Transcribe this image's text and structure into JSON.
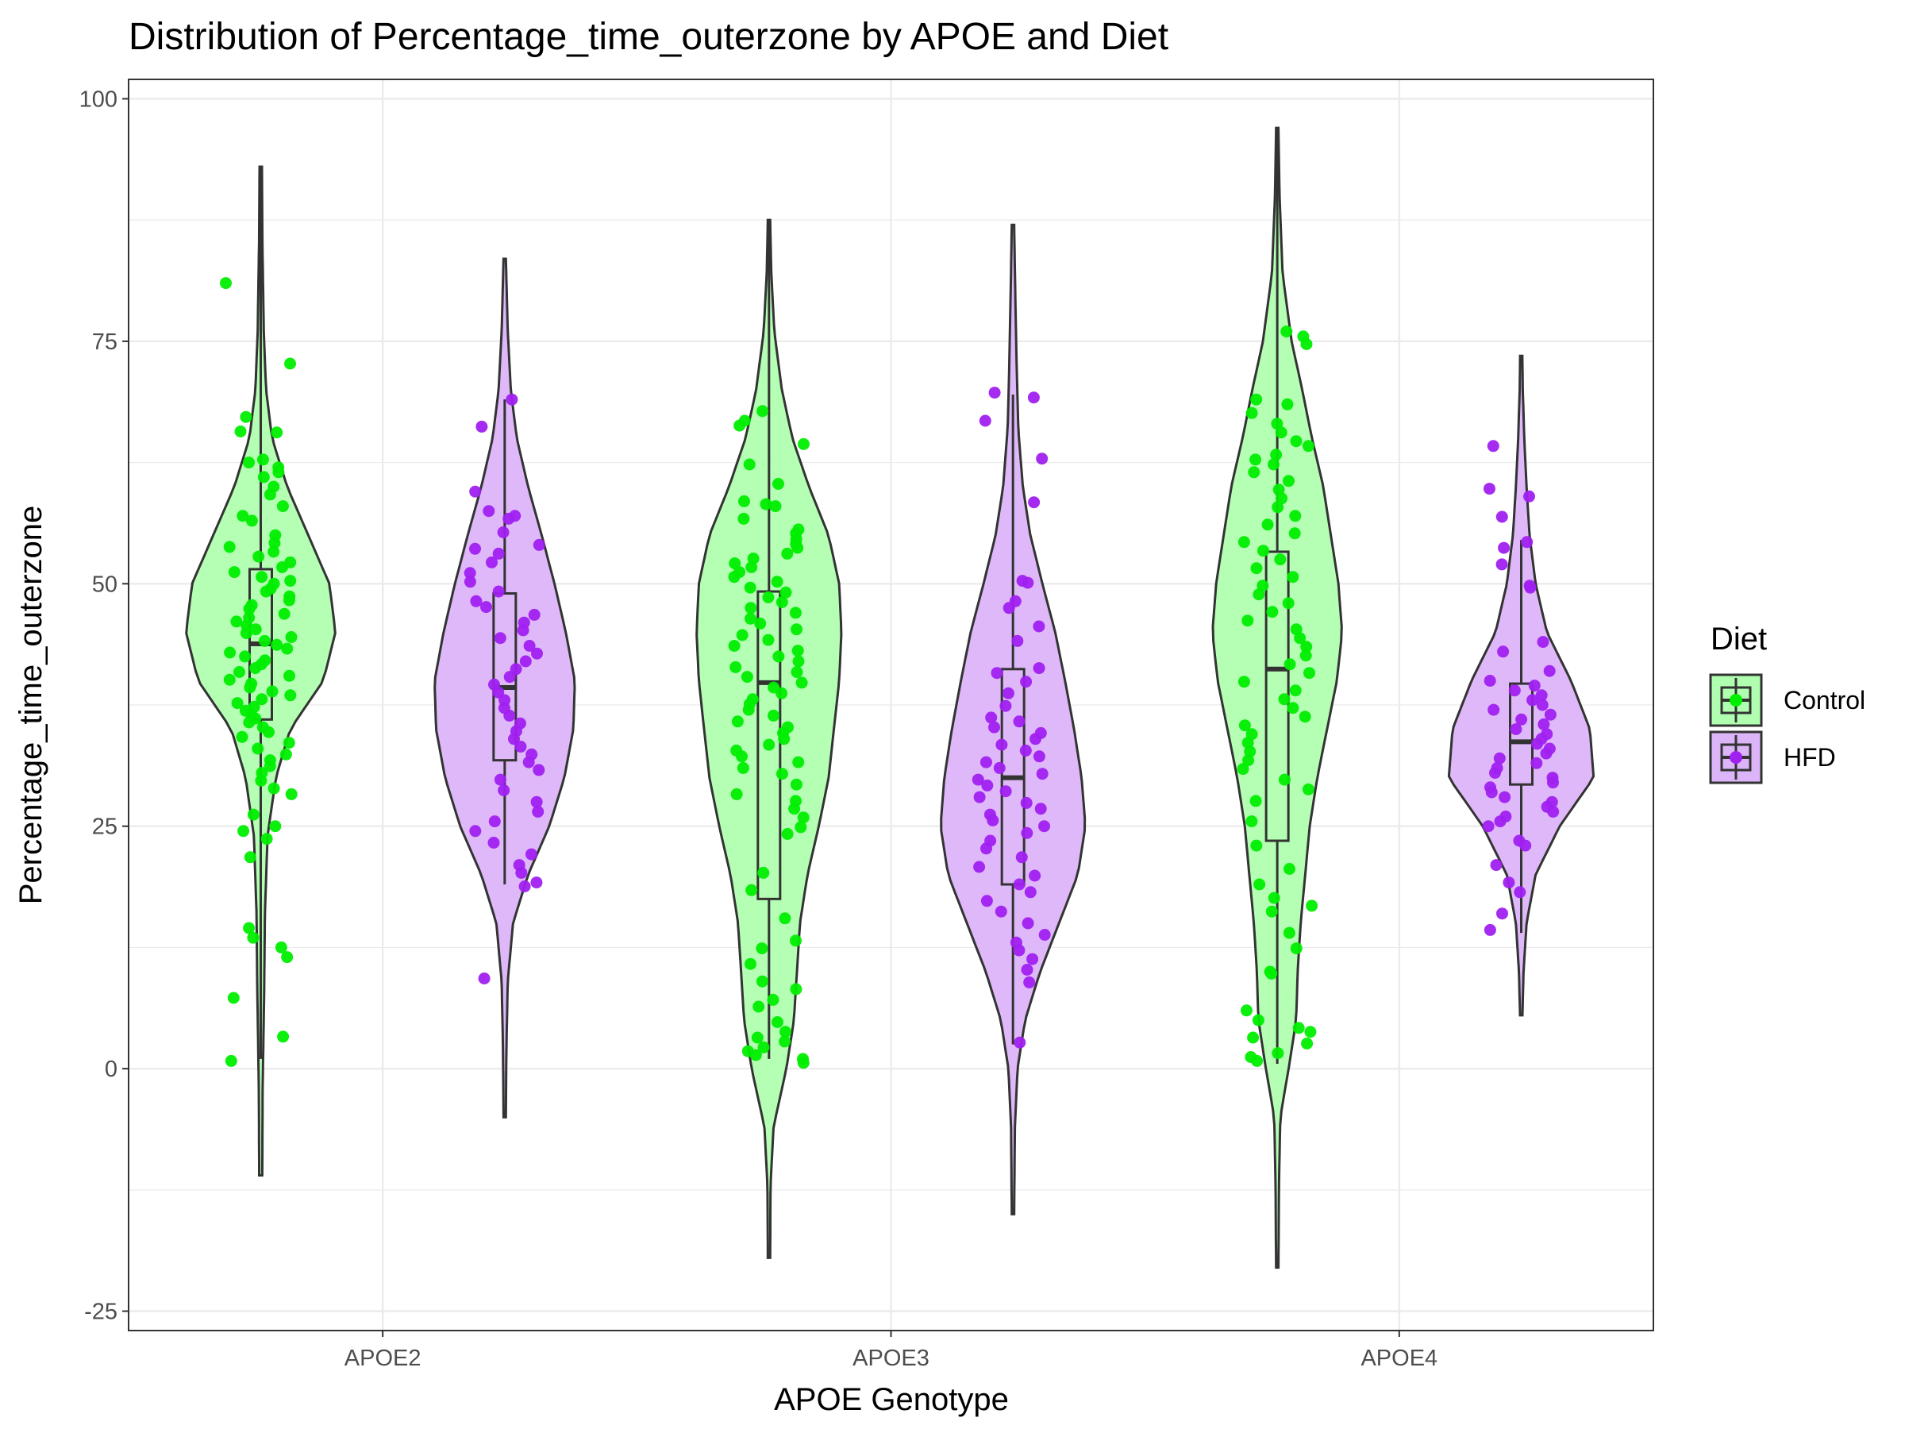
{
  "chart_data": {
    "type": "violin",
    "title": "Distribution of Percentage_time_outerzone by APOE and Diet",
    "xlabel": "APOE Genotype",
    "ylabel": "Percentage_time_outerzone",
    "categories": [
      "APOE2",
      "APOE3",
      "APOE4"
    ],
    "ylim": [
      -27,
      102
    ],
    "yticks": [
      -25,
      0,
      25,
      50,
      75,
      100
    ],
    "ytick_labels": [
      "-25",
      "0",
      "25",
      "50",
      "75",
      "100"
    ],
    "grid": true,
    "legend": {
      "title": "Diet",
      "position": "right",
      "entries": [
        "Control",
        "HFD"
      ]
    },
    "colors": {
      "Control": {
        "point": "#00ee00",
        "fill": "#b0ffb0"
      },
      "HFD": {
        "point": "#a020f0",
        "fill": "#dcb4f8"
      },
      "outline": "#333333",
      "grid": "#ebebeb",
      "panel_border": "#333333"
    },
    "series": [
      {
        "name": "Control",
        "groups": [
          {
            "category": "APOE2",
            "box": {
              "min": 1,
              "q1": 36,
              "median": 43.8,
              "q3": 51.5,
              "max": 93
            },
            "violin_range": [
              -11,
              93
            ],
            "violin_profile": [
              [
                -11,
                0.01
              ],
              [
                -2,
                0.015
              ],
              [
                8,
                0.035
              ],
              [
                16,
                0.045
              ],
              [
                24,
                0.08
              ],
              [
                30,
                0.19
              ],
              [
                35,
                0.38
              ],
              [
                40,
                0.82
              ],
              [
                45,
                0.98
              ],
              [
                50,
                0.9
              ],
              [
                55,
                0.62
              ],
              [
                60,
                0.34
              ],
              [
                65,
                0.14
              ],
              [
                70,
                0.06
              ],
              [
                76,
                0.03
              ],
              [
                85,
                0.012
              ],
              [
                93,
                0.005
              ]
            ],
            "points": [
              81,
              72.7,
              67.2,
              65.7,
              65.6,
              62.8,
              62.5,
              62,
              61.5,
              61,
              60,
              59.2,
              58,
              57,
              56.5,
              55,
              54.2,
              53.8,
              53.3,
              52.8,
              52.2,
              51.7,
              51.2,
              50.7,
              50.3,
              50,
              49.5,
              49.2,
              48.7,
              48.3,
              47.8,
              47.4,
              46.9,
              46.5,
              46.1,
              45.7,
              45.3,
              44.9,
              44.5,
              44.1,
              43.7,
              43.3,
              42.9,
              42.5,
              42.1,
              41.7,
              41.3,
              40.9,
              40.5,
              40.1,
              39.7,
              39.3,
              38.9,
              38.5,
              38.1,
              37.7,
              37.3,
              36.9,
              36.5,
              36.1,
              35.7,
              35.2,
              34.7,
              34.2,
              33.6,
              33,
              32.4,
              31.8,
              31.2,
              30.5,
              29.7,
              28.9,
              28.3,
              26.2,
              25,
              24.5,
              23.7,
              21.8,
              14.5,
              13.5,
              12.5,
              11.5,
              7.3,
              3.3,
              0.8
            ]
          },
          {
            "category": "APOE3",
            "box": {
              "min": 1,
              "q1": 17.5,
              "median": 39.8,
              "q3": 49.2,
              "max": 87.5
            },
            "violin_range": [
              -19.5,
              87.5
            ],
            "violin_profile": [
              [
                -19.5,
                0.005
              ],
              [
                -12,
                0.01
              ],
              [
                -6,
                0.05
              ],
              [
                0,
                0.22
              ],
              [
                5,
                0.32
              ],
              [
                10,
                0.36
              ],
              [
                15,
                0.4
              ],
              [
                20,
                0.5
              ],
              [
                25,
                0.65
              ],
              [
                30,
                0.78
              ],
              [
                35,
                0.85
              ],
              [
                40,
                0.92
              ],
              [
                45,
                0.95
              ],
              [
                50,
                0.92
              ],
              [
                55,
                0.78
              ],
              [
                60,
                0.52
              ],
              [
                65,
                0.3
              ],
              [
                70,
                0.16
              ],
              [
                76,
                0.06
              ],
              [
                82,
                0.02
              ],
              [
                87.5,
                0.005
              ]
            ],
            "points": [
              67.8,
              66.8,
              66.3,
              64.4,
              62.3,
              60.3,
              58.5,
              58.2,
              58,
              56.7,
              55.6,
              55.2,
              54.6,
              54.1,
              53.7,
              53.1,
              52.6,
              52.1,
              51.7,
              51.2,
              50.7,
              50.2,
              49.6,
              49.1,
              48.6,
              48.1,
              47.5,
              47,
              46.4,
              45.9,
              45.3,
              44.7,
              44.2,
              43.6,
              43.1,
              42.5,
              42,
              41.4,
              40.9,
              40.4,
              39.8,
              39.3,
              38.7,
              38.1,
              37.6,
              37,
              36.4,
              35.8,
              35.2,
              34.6,
              34,
              33.4,
              32.8,
              32.2,
              31.6,
              31,
              30.4,
              29.3,
              28.3,
              27.6,
              26.8,
              25.9,
              24.9,
              24.2,
              20.2,
              18.4,
              15.5,
              13.2,
              12.4,
              10.8,
              9,
              8.2,
              7.1,
              6.4,
              4.8,
              3.8,
              3.2,
              2.8,
              2.2,
              1.8,
              1.4,
              1,
              0.6
            ]
          },
          {
            "category": "APOE4",
            "box": {
              "min": 0.5,
              "q1": 23.5,
              "median": 41.2,
              "q3": 53.3,
              "max": 97
            },
            "violin_range": [
              -20.5,
              97
            ],
            "violin_profile": [
              [
                -20.5,
                0.005
              ],
              [
                -12,
                0.012
              ],
              [
                -5,
                0.03
              ],
              [
                0,
                0.14
              ],
              [
                5,
                0.24
              ],
              [
                10,
                0.26
              ],
              [
                15,
                0.3
              ],
              [
                20,
                0.36
              ],
              [
                25,
                0.42
              ],
              [
                30,
                0.52
              ],
              [
                35,
                0.65
              ],
              [
                40,
                0.78
              ],
              [
                45,
                0.85
              ],
              [
                50,
                0.8
              ],
              [
                55,
                0.7
              ],
              [
                60,
                0.6
              ],
              [
                65,
                0.45
              ],
              [
                70,
                0.32
              ],
              [
                75,
                0.18
              ],
              [
                82,
                0.06
              ],
              [
                90,
                0.02
              ],
              [
                97,
                0.005
              ]
            ],
            "points": [
              76,
              75.5,
              74.7,
              69,
              68.5,
              67.6,
              66.5,
              65.6,
              64.7,
              64.2,
              63.3,
              62.8,
              62.3,
              61.5,
              60.6,
              59.7,
              58.8,
              57.9,
              57,
              56.1,
              55.2,
              54.3,
              53.4,
              52.5,
              51.6,
              50.7,
              49.8,
              48.9,
              48,
              47.1,
              46.2,
              45.3,
              44.4,
              43.5,
              42.6,
              41.7,
              40.8,
              39.9,
              39,
              38.1,
              37.2,
              36.3,
              35.4,
              34.5,
              33.6,
              32.7,
              31.8,
              30.9,
              29.8,
              28.8,
              27.6,
              25.5,
              23,
              20.6,
              19,
              17.6,
              16.8,
              16.2,
              14,
              12.4,
              10,
              9.8,
              6,
              5,
              4.2,
              3.8,
              3.2,
              2.6,
              1.6,
              1.2,
              0.8
            ]
          }
        ]
      },
      {
        "name": "HFD",
        "groups": [
          {
            "category": "APOE2",
            "box": {
              "min": 19,
              "q1": 31.8,
              "median": 39.3,
              "q3": 49,
              "max": 69
            },
            "violin_range": [
              -5,
              83.5
            ],
            "violin_profile": [
              [
                -5,
                0.005
              ],
              [
                2,
                0.012
              ],
              [
                9,
                0.03
              ],
              [
                15,
                0.1
              ],
              [
                20,
                0.3
              ],
              [
                25,
                0.58
              ],
              [
                30,
                0.78
              ],
              [
                35,
                0.9
              ],
              [
                40,
                0.92
              ],
              [
                45,
                0.8
              ],
              [
                50,
                0.65
              ],
              [
                55,
                0.48
              ],
              [
                60,
                0.3
              ],
              [
                65,
                0.15
              ],
              [
                70,
                0.07
              ],
              [
                76,
                0.03
              ],
              [
                83.5,
                0.005
              ]
            ],
            "points": [
              69,
              66.2,
              59.5,
              57.5,
              57,
              56.7,
              55.3,
              54,
              53.6,
              53.1,
              52.2,
              51.1,
              50.2,
              49.2,
              48.2,
              47.6,
              46.8,
              46,
              45.2,
              44.4,
              43.6,
              42.8,
              42,
              41.2,
              40.4,
              39.6,
              38.8,
              38,
              37.2,
              36.4,
              35.6,
              34.8,
              34,
              33.2,
              32.4,
              31.6,
              30.8,
              29.8,
              28.7,
              27.5,
              26.5,
              25.5,
              24.5,
              23.3,
              22.1,
              21,
              20.2,
              19.2,
              18.8,
              9.3
            ]
          },
          {
            "category": "APOE3",
            "box": {
              "min": 2.5,
              "q1": 19,
              "median": 30,
              "q3": 41.2,
              "max": 69.5
            },
            "violin_range": [
              -15,
              87
            ],
            "violin_profile": [
              [
                -15,
                0.005
              ],
              [
                -6,
                0.015
              ],
              [
                0,
                0.05
              ],
              [
                5,
                0.15
              ],
              [
                10,
                0.35
              ],
              [
                15,
                0.6
              ],
              [
                20,
                0.85
              ],
              [
                25,
                0.95
              ],
              [
                30,
                0.9
              ],
              [
                35,
                0.8
              ],
              [
                40,
                0.68
              ],
              [
                45,
                0.55
              ],
              [
                50,
                0.38
              ],
              [
                55,
                0.22
              ],
              [
                60,
                0.12
              ],
              [
                66,
                0.06
              ],
              [
                72,
                0.04
              ],
              [
                80,
                0.02
              ],
              [
                87,
                0.005
              ]
            ],
            "points": [
              69.7,
              69.2,
              66.8,
              62.9,
              58.4,
              50.3,
              50.1,
              48.2,
              47.5,
              45.6,
              44.1,
              41.3,
              40.8,
              39.9,
              38.7,
              37.4,
              36.2,
              35.8,
              35.2,
              34.6,
              34,
              33.4,
              32.8,
              32.2,
              31.6,
              31,
              30.4,
              29.8,
              29.2,
              28.6,
              28,
              27.4,
              26.8,
              26.2,
              25.6,
              25,
              24.3,
              23.5,
              22.7,
              21.8,
              20.8,
              19.9,
              19,
              18.2,
              17.3,
              16.2,
              15,
              13.8,
              13,
              12.2,
              11.3,
              10.2,
              8.9,
              2.7
            ]
          },
          {
            "category": "APOE4",
            "box": {
              "min": 14,
              "q1": 29.3,
              "median": 33.7,
              "q3": 39.7,
              "max": 54.5
            },
            "violin_range": [
              5.5,
              73.5
            ],
            "violin_profile": [
              [
                5.5,
                0.005
              ],
              [
                10,
                0.02
              ],
              [
                15,
                0.06
              ],
              [
                20,
                0.18
              ],
              [
                25,
                0.5
              ],
              [
                30,
                0.95
              ],
              [
                35,
                0.9
              ],
              [
                40,
                0.65
              ],
              [
                45,
                0.33
              ],
              [
                50,
                0.18
              ],
              [
                55,
                0.1
              ],
              [
                60,
                0.06
              ],
              [
                65,
                0.03
              ],
              [
                70,
                0.01
              ],
              [
                73.5,
                0.004
              ]
            ],
            "points": [
              64.2,
              59.8,
              59,
              56.9,
              54.3,
              53.7,
              52,
              49.8,
              49.6,
              44,
              43,
              41,
              40,
              39.5,
              39,
              38.5,
              38,
              37.5,
              37,
              36.5,
              36,
              35.5,
              35,
              34.5,
              34,
              33.5,
              33,
              32.5,
              32,
              31.5,
              31,
              30.5,
              30,
              29.5,
              29,
              28.5,
              28,
              27.5,
              27,
              26.5,
              26,
              25.5,
              25,
              23.5,
              23,
              21,
              19.2,
              18.2,
              16,
              14.3
            ]
          }
        ]
      }
    ]
  }
}
